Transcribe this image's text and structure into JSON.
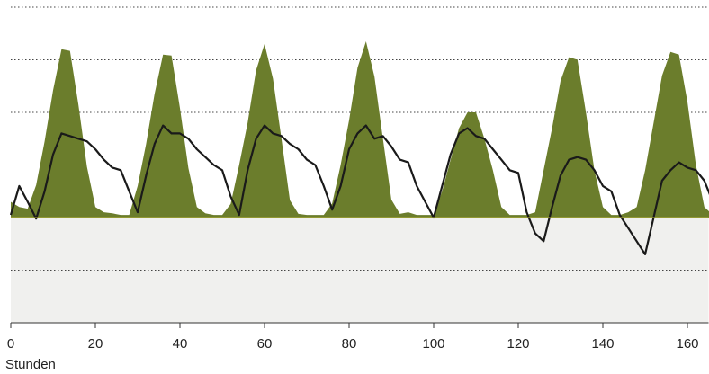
{
  "chart_data": {
    "type": "line",
    "x_label": "Stunden",
    "x": [
      0,
      2,
      4,
      6,
      8,
      10,
      12,
      14,
      16,
      18,
      20,
      22,
      24,
      26,
      28,
      30,
      32,
      34,
      36,
      38,
      40,
      42,
      44,
      46,
      48,
      50,
      52,
      54,
      56,
      58,
      60,
      62,
      64,
      66,
      68,
      70,
      72,
      74,
      76,
      78,
      80,
      82,
      84,
      86,
      88,
      90,
      92,
      94,
      96,
      98,
      100,
      102,
      104,
      106,
      108,
      110,
      112,
      114,
      116,
      118,
      120,
      122,
      124,
      126,
      128,
      130,
      132,
      134,
      136,
      138,
      140,
      142,
      144,
      146,
      148,
      150,
      152,
      154,
      156,
      158,
      160,
      162,
      164,
      166
    ],
    "series": [
      {
        "kind": "area",
        "color": "#6b7d2c",
        "values": [
          0.3,
          0.2,
          0.17,
          0.62,
          1.45,
          2.42,
          3.2,
          3.17,
          2.14,
          0.97,
          0.2,
          0.1,
          0.08,
          0.05,
          0.05,
          0.6,
          1.4,
          2.35,
          3.1,
          3.08,
          2.08,
          0.94,
          0.2,
          0.08,
          0.05,
          0.05,
          0.26,
          1.0,
          1.8,
          2.8,
          3.3,
          2.64,
          1.5,
          0.33,
          0.07,
          0.05,
          0.05,
          0.05,
          0.27,
          1.0,
          1.85,
          2.85,
          3.35,
          2.68,
          1.5,
          0.34,
          0.07,
          0.1,
          0.05,
          0.05,
          0.05,
          0.5,
          1.1,
          1.7,
          2.0,
          2.0,
          1.5,
          0.9,
          0.2,
          0.05,
          0.05,
          0.05,
          0.1,
          0.9,
          1.7,
          2.6,
          3.05,
          3.0,
          2.0,
          0.9,
          0.2,
          0.05,
          0.05,
          0.1,
          0.2,
          0.9,
          1.8,
          2.7,
          3.15,
          3.1,
          2.2,
          1.0,
          0.2,
          0.05
        ]
      },
      {
        "kind": "line",
        "color": "#1a1a1a",
        "values": [
          0.05,
          0.6,
          0.3,
          -0.02,
          0.5,
          1.2,
          1.6,
          1.55,
          1.5,
          1.45,
          1.3,
          1.1,
          0.95,
          0.9,
          0.5,
          0.1,
          0.8,
          1.4,
          1.75,
          1.6,
          1.6,
          1.5,
          1.3,
          1.15,
          1.0,
          0.9,
          0.4,
          0.05,
          0.9,
          1.5,
          1.75,
          1.6,
          1.55,
          1.4,
          1.3,
          1.1,
          1.0,
          0.6,
          0.15,
          0.6,
          1.3,
          1.6,
          1.75,
          1.5,
          1.55,
          1.35,
          1.1,
          1.05,
          0.6,
          0.3,
          0.0,
          0.6,
          1.2,
          1.6,
          1.7,
          1.55,
          1.5,
          1.3,
          1.1,
          0.9,
          0.85,
          0.1,
          -0.3,
          -0.45,
          0.2,
          0.8,
          1.1,
          1.15,
          1.1,
          0.9,
          0.6,
          0.5,
          0.05,
          -0.2,
          -0.45,
          -0.7,
          0.0,
          0.7,
          0.9,
          1.05,
          0.95,
          0.9,
          0.7,
          0.3
        ]
      }
    ],
    "xlim": [
      0,
      165
    ],
    "xticks": [
      0,
      20,
      40,
      60,
      80,
      100,
      120,
      140,
      160
    ],
    "ylim": [
      -2,
      4
    ],
    "yticks": [
      -1,
      0,
      1,
      2,
      3,
      4
    ],
    "negative_fill": "#f0f0ee",
    "grid": true
  }
}
